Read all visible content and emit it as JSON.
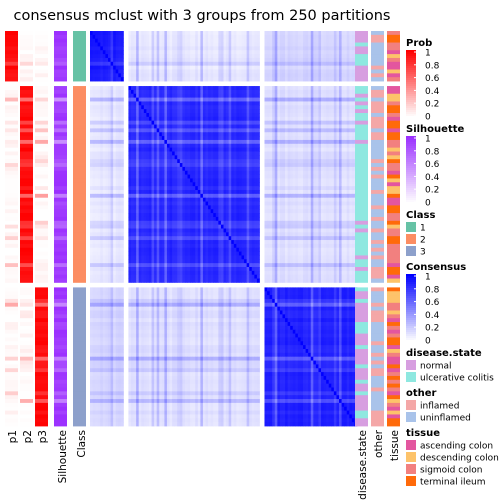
{
  "chart_data": {
    "type": "heatmap",
    "title": "consensus mclust with 3 groups from 250 partitions",
    "n_samples": 100,
    "group_sizes": [
      {
        "class": "1",
        "samples": 13
      },
      {
        "class": "2",
        "samples": 51
      },
      {
        "class": "3",
        "samples": 36
      }
    ],
    "annotation_columns_left": [
      "p1",
      "p2",
      "p3",
      "Silhouette",
      "Class"
    ],
    "annotation_columns_right": [
      "disease.state",
      "other",
      "tissue"
    ],
    "legends": [
      {
        "title": "Prob",
        "type": "continuous",
        "ticks": [
          "1",
          "0.8",
          "0.6",
          "0.4",
          "0.2",
          "0"
        ],
        "colors": [
          "#ff0000",
          "#ffffff"
        ]
      },
      {
        "title": "Silhouette",
        "type": "continuous",
        "ticks": [
          "1",
          "0.8",
          "0.6",
          "0.4",
          "0.2",
          "0"
        ],
        "colors": [
          "#9b30ff",
          "#ffffff"
        ]
      },
      {
        "title": "Class",
        "type": "discrete",
        "items": [
          {
            "label": "1",
            "color": "#66c2a5"
          },
          {
            "label": "2",
            "color": "#fc8d62"
          },
          {
            "label": "3",
            "color": "#8da0cb"
          }
        ]
      },
      {
        "title": "Consensus",
        "type": "continuous",
        "ticks": [
          "1",
          "0.8",
          "0.6",
          "0.4",
          "0.2",
          "0"
        ],
        "colors": [
          "#0000ff",
          "#ffffff"
        ]
      },
      {
        "title": "disease.state",
        "type": "discrete",
        "items": [
          {
            "label": "normal",
            "color": "#d79ee0"
          },
          {
            "label": "ulcerative colitis",
            "color": "#8ee8e0"
          }
        ]
      },
      {
        "title": "other",
        "type": "discrete",
        "items": [
          {
            "label": "inflamed",
            "color": "#f4a7a7"
          },
          {
            "label": "uninflamed",
            "color": "#a9c3ea"
          }
        ]
      },
      {
        "title": "tissue",
        "type": "discrete",
        "items": [
          {
            "label": "ascending colon",
            "color": "#e3569f"
          },
          {
            "label": "descending colon",
            "color": "#fdc36a"
          },
          {
            "label": "sigmoid colon",
            "color": "#f2807f"
          },
          {
            "label": "terminal ileum",
            "color": "#ff6a0a"
          }
        ]
      }
    ]
  }
}
